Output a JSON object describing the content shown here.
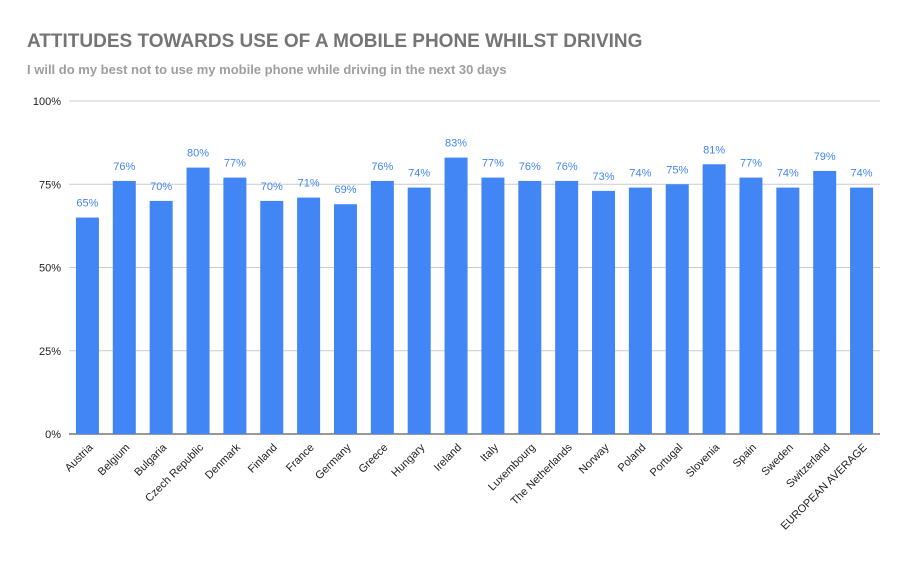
{
  "chart_data": {
    "type": "bar",
    "title": "ATTITUDES TOWARDS USE OF A MOBILE PHONE WHILST DRIVING",
    "subtitle": "I will do my best not to use my mobile phone while driving in the next 30 days",
    "xlabel": "",
    "ylabel": "",
    "ylim": [
      0,
      100
    ],
    "yticks": [
      "0%",
      "25%",
      "50%",
      "75%",
      "100%"
    ],
    "grid": true,
    "legend": "none",
    "bar_color": "#4285f4",
    "categories": [
      "Austria",
      "Belgium",
      "Bulgaria",
      "Czech Republic",
      "Denmark",
      "Finland",
      "France",
      "Germany",
      "Greece",
      "Hungary",
      "Ireland",
      "Italy",
      "Luxembourg",
      "The Netherlands",
      "Norway",
      "Poland",
      "Portugal",
      "Slovenia",
      "Spain",
      "Sweden",
      "Switzerland",
      "EUROPEAN AVERAGE"
    ],
    "values": [
      65,
      76,
      70,
      80,
      77,
      70,
      71,
      69,
      76,
      74,
      83,
      77,
      76,
      76,
      73,
      74,
      75,
      81,
      77,
      74,
      79,
      74
    ],
    "data_labels": [
      "65%",
      "76%",
      "70%",
      "80%",
      "77%",
      "70%",
      "71%",
      "69%",
      "76%",
      "74%",
      "83%",
      "77%",
      "76%",
      "76%",
      "73%",
      "74%",
      "75%",
      "81%",
      "77%",
      "74%",
      "79%",
      "74%"
    ]
  }
}
